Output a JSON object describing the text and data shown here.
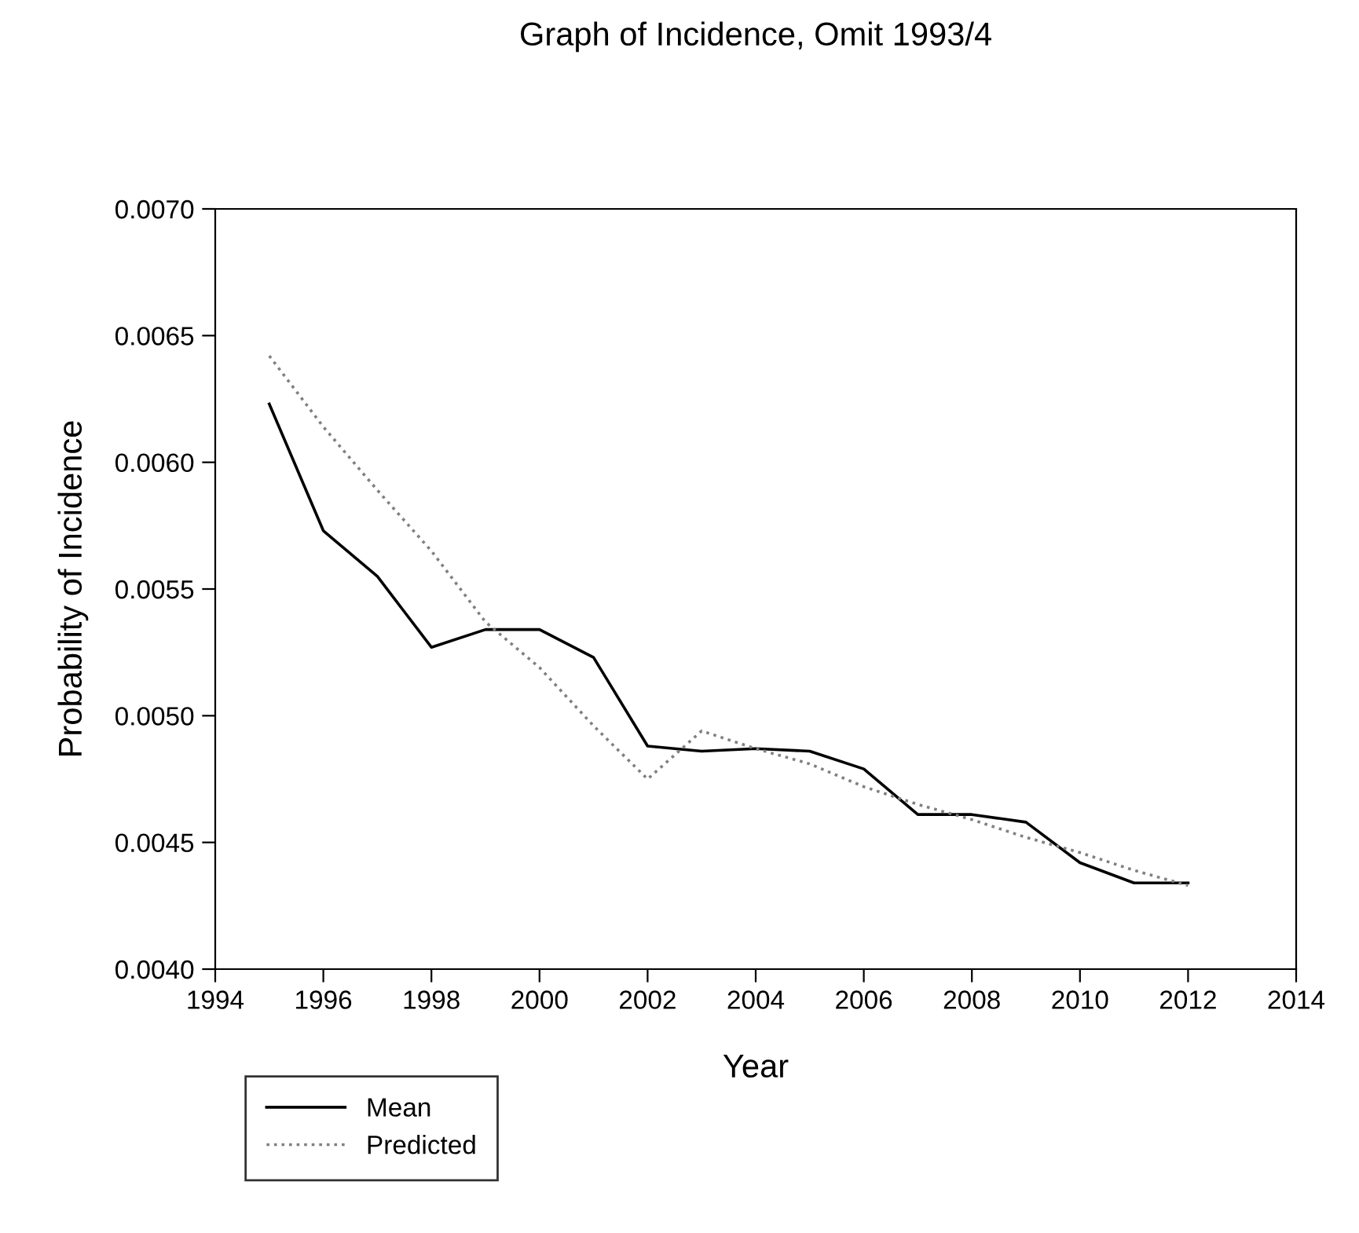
{
  "chart_data": {
    "type": "line",
    "title": "Graph of Incidence, Omit 1993/4",
    "xlabel": "Year",
    "ylabel": "Probability of Incidence",
    "x": [
      1995,
      1996,
      1997,
      1998,
      1999,
      2000,
      2001,
      2002,
      2003,
      2004,
      2005,
      2006,
      2007,
      2008,
      2009,
      2010,
      2011,
      2012
    ],
    "series": [
      {
        "name": "Mean",
        "color": "#000000",
        "line_style": "solid",
        "values": [
          0.00623,
          0.00573,
          0.00555,
          0.00527,
          0.00534,
          0.00534,
          0.00523,
          0.00488,
          0.00486,
          0.00487,
          0.00486,
          0.00479,
          0.00461,
          0.00461,
          0.00458,
          0.00442,
          0.00434,
          0.00434
        ]
      },
      {
        "name": "Predicted",
        "color": "#808080",
        "line_style": "dotted",
        "values": [
          0.00642,
          0.00614,
          0.00589,
          0.00565,
          0.00537,
          0.00519,
          0.00496,
          0.00475,
          0.00494,
          0.00487,
          0.00481,
          0.00472,
          0.00465,
          0.00459,
          0.00452,
          0.00446,
          0.00439,
          0.00433
        ]
      }
    ],
    "xlim": [
      1994,
      2014
    ],
    "xticks": [
      1994,
      1996,
      1998,
      2000,
      2002,
      2004,
      2006,
      2008,
      2010,
      2012,
      2014
    ],
    "ylim": [
      0.004,
      0.007
    ],
    "yticks": [
      {
        "value": 0.004,
        "label": "0.0040"
      },
      {
        "value": 0.0045,
        "label": "0.0045"
      },
      {
        "value": 0.005,
        "label": "0.0050"
      },
      {
        "value": 0.0055,
        "label": "0.0055"
      },
      {
        "value": 0.006,
        "label": "0.0060"
      },
      {
        "value": 0.0065,
        "label": "0.0065"
      },
      {
        "value": 0.007,
        "label": "0.0070"
      }
    ],
    "grid": false,
    "legend": "bottom left",
    "marker": "none"
  }
}
